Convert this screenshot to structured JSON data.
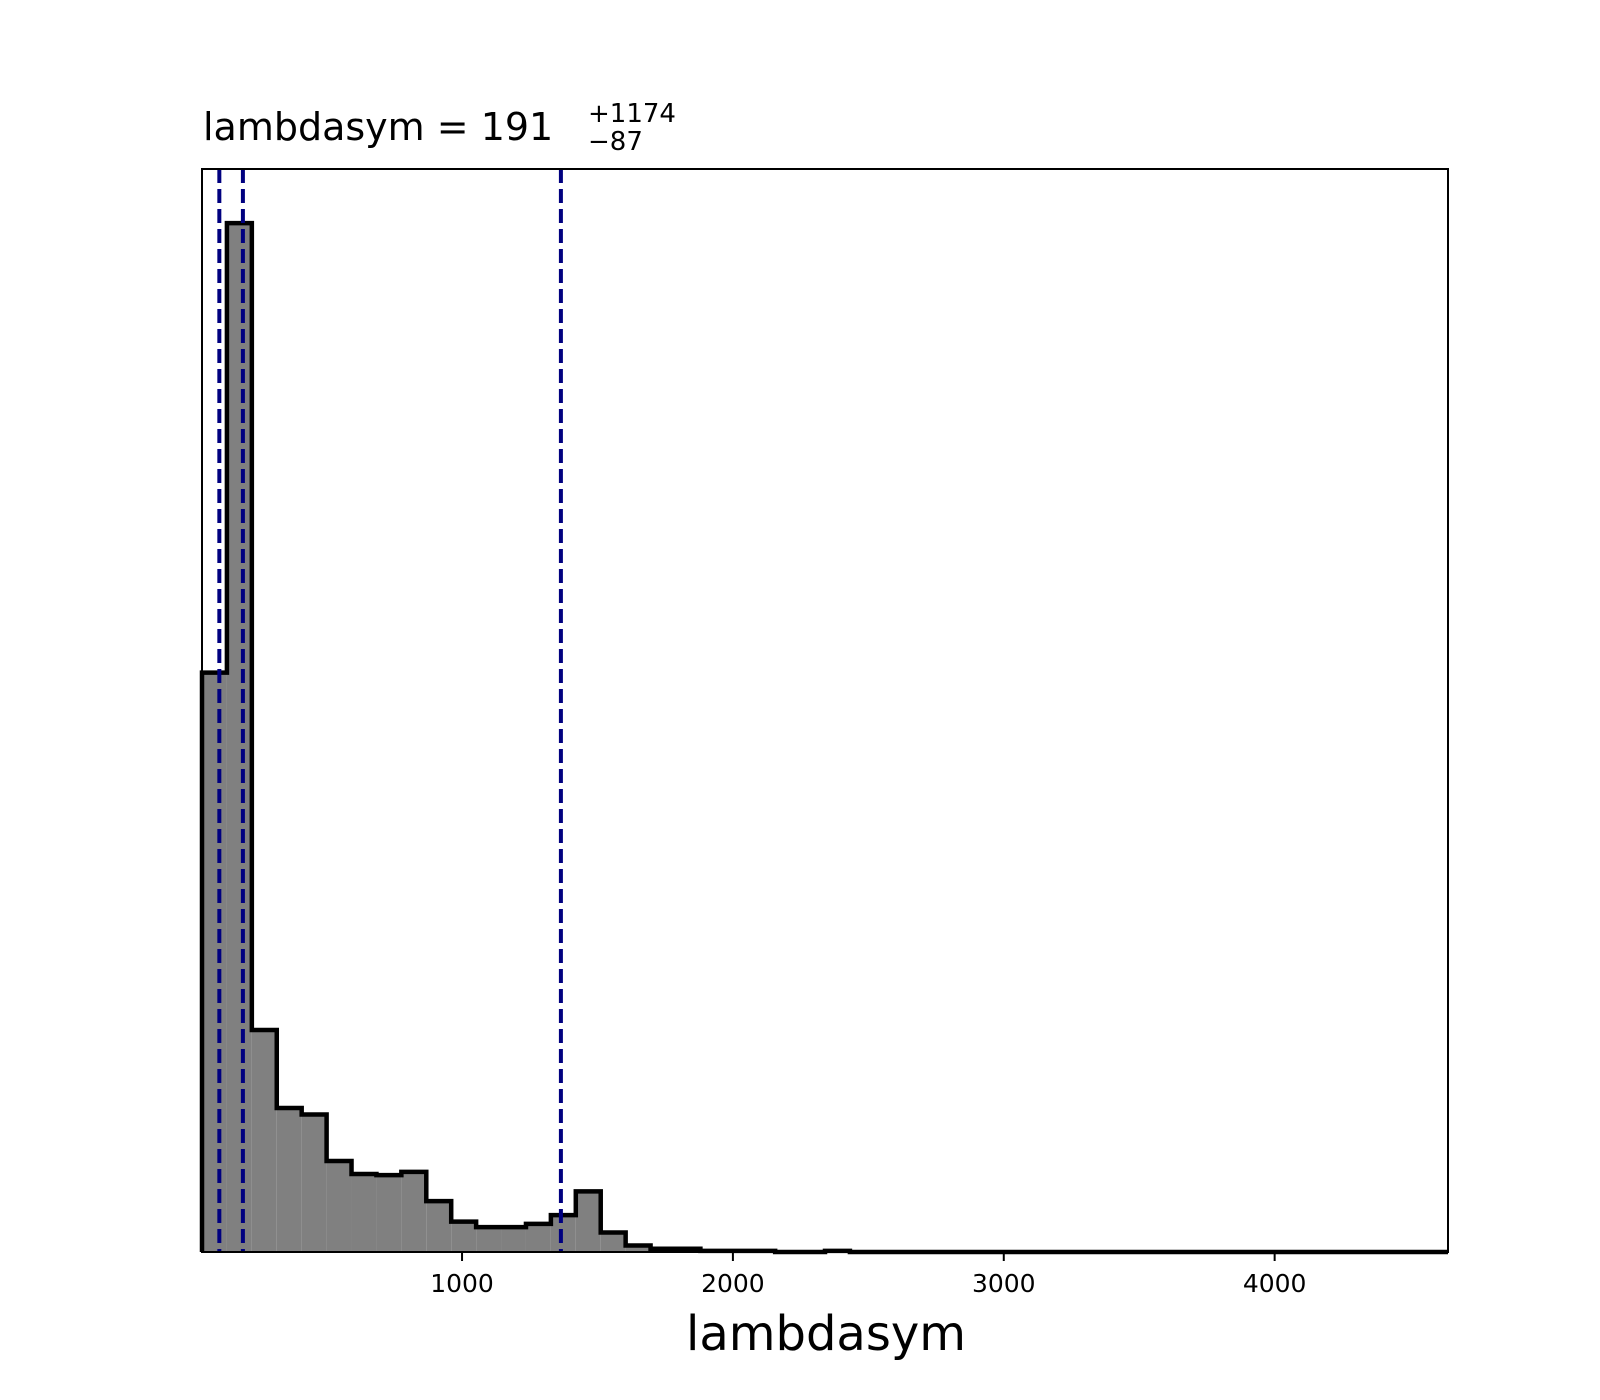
{
  "chart_data": {
    "type": "bar",
    "title": {
      "prefix": "lambdasym = 191",
      "sup": "+1174",
      "sub": "−87"
    },
    "xlabel": "lambdasym",
    "ylabel": "",
    "xlim": [
      40,
      4640
    ],
    "ylim": [
      0,
      1.0
    ],
    "x_ticks": [
      1000,
      2000,
      3000,
      4000
    ],
    "y_ticks_shown": false,
    "grid": false,
    "bin_width": 92,
    "bin_edges_start": 40,
    "density": [
      0.535,
      0.95,
      0.205,
      0.133,
      0.127,
      0.084,
      0.072,
      0.071,
      0.074,
      0.047,
      0.028,
      0.023,
      0.023,
      0.026,
      0.034,
      0.056,
      0.018,
      0.006,
      0.003,
      0.003,
      0.001,
      0.001,
      0.001,
      0.0,
      0.0,
      0.001,
      0.0,
      0.0,
      0.0,
      0.0,
      0.0,
      0.0,
      0.0,
      0.0,
      0.0,
      0.0,
      0.0,
      0.0,
      0.0,
      0.0,
      0.0,
      0.0,
      0.0,
      0.0,
      0.0,
      0.0,
      0.0,
      0.0,
      0.0,
      0.0
    ],
    "quantile_lines": [
      104,
      191,
      1365
    ],
    "colors": {
      "bar_fill": "#808080",
      "bar_edge": "#000000",
      "quantile_line": "#000080"
    }
  }
}
